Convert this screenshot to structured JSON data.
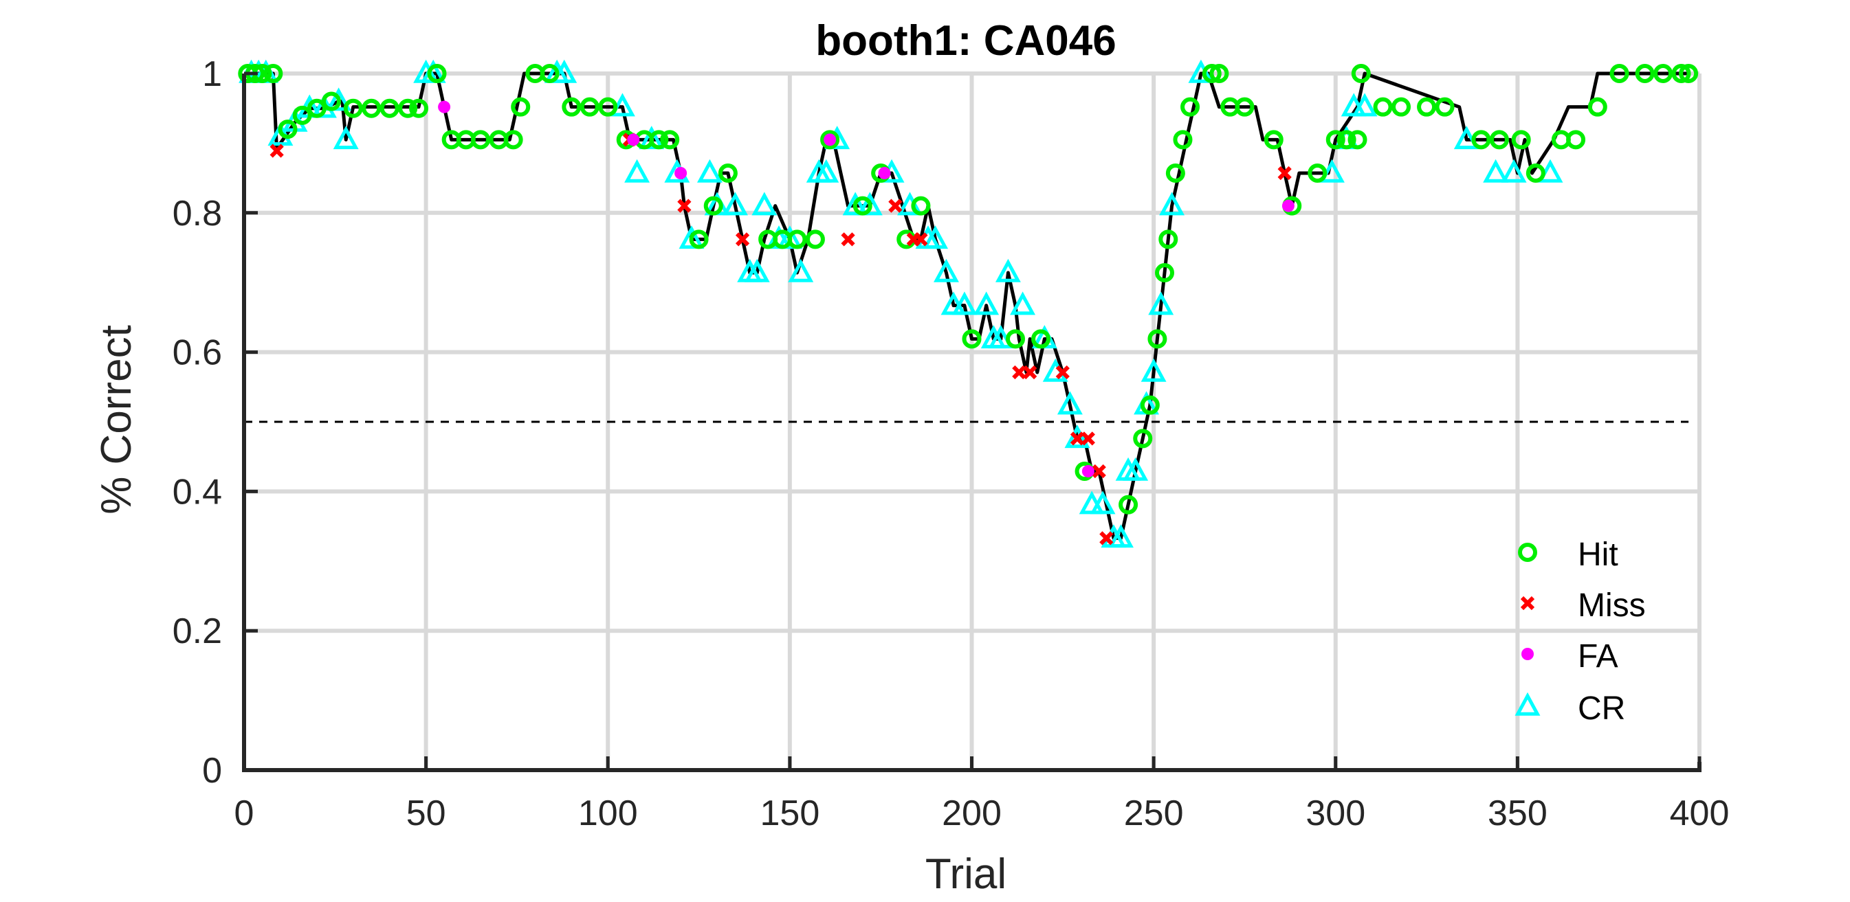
{
  "chart_data": {
    "type": "line",
    "title": "booth1: CA046",
    "xlabel": "Trial",
    "ylabel": "% Correct",
    "xlim": [
      0,
      400
    ],
    "ylim": [
      0,
      1
    ],
    "xticks": [
      0,
      50,
      100,
      150,
      200,
      250,
      300,
      350,
      400
    ],
    "xtick_labels": [
      "0",
      "50",
      "100",
      "150",
      "200",
      "250",
      "300",
      "350",
      "400"
    ],
    "yticks": [
      0,
      0.2,
      0.4,
      0.6,
      0.8,
      1
    ],
    "ytick_labels": [
      "0",
      "0.2",
      "0.4",
      "0.6",
      "0.8",
      "1"
    ],
    "grid": true,
    "legend_position": "bottom-right",
    "chance_level": 0.5,
    "line_color": "#000000",
    "series": [
      {
        "name": "Hit",
        "marker": "circle",
        "color": "#00ee00",
        "x": [
          1,
          3,
          5,
          8,
          12,
          16,
          20,
          24,
          30,
          35,
          40,
          45,
          48,
          53,
          57,
          61,
          65,
          70,
          74,
          76,
          80,
          84,
          90,
          95,
          100,
          105,
          110,
          114,
          117,
          125,
          129,
          133,
          144,
          148,
          152,
          157,
          161,
          170,
          175,
          182,
          186,
          200,
          212,
          219,
          231,
          243,
          247,
          249,
          251,
          253,
          254,
          256,
          258,
          260,
          266,
          268,
          271,
          275,
          283,
          288,
          295,
          300,
          303,
          306,
          307,
          313,
          318,
          325,
          330,
          340,
          345,
          351,
          355,
          362,
          366,
          372,
          378,
          385,
          390,
          395,
          397
        ],
        "y": [
          1,
          1,
          1,
          1,
          0.92,
          0.94,
          0.95,
          0.96,
          0.95,
          0.95,
          0.95,
          0.95,
          0.95,
          1,
          0.905,
          0.905,
          0.905,
          0.905,
          0.905,
          0.952,
          1,
          1,
          0.952,
          0.952,
          0.952,
          0.905,
          0.905,
          0.905,
          0.905,
          0.762,
          0.81,
          0.857,
          0.762,
          0.762,
          0.762,
          0.762,
          0.905,
          0.81,
          0.857,
          0.762,
          0.81,
          0.619,
          0.619,
          0.619,
          0.429,
          0.381,
          0.476,
          0.524,
          0.619,
          0.714,
          0.762,
          0.857,
          0.905,
          0.952,
          1,
          1,
          0.952,
          0.952,
          0.905,
          0.81,
          0.857,
          0.905,
          0.905,
          0.905,
          1,
          0.952,
          0.952,
          0.952,
          0.952,
          0.905,
          0.905,
          0.905,
          0.857,
          0.905,
          0.905,
          0.952,
          1,
          1,
          1,
          1,
          1
        ]
      },
      {
        "name": "Miss",
        "marker": "x",
        "color": "#ff0000",
        "x": [
          9,
          106,
          121,
          137,
          166,
          179,
          184,
          186,
          213,
          216,
          225,
          229,
          232,
          235,
          237,
          286
        ],
        "y": [
          0.889,
          0.905,
          0.81,
          0.762,
          0.762,
          0.81,
          0.762,
          0.762,
          0.571,
          0.571,
          0.571,
          0.476,
          0.476,
          0.429,
          0.333,
          0.857
        ],
        "extra_points": []
      },
      {
        "name": "FA",
        "marker": "dot",
        "color": "#ff00ff",
        "x": [
          55,
          107,
          120,
          161,
          176,
          232,
          287
        ],
        "y": [
          0.952,
          0.905,
          0.857,
          0.905,
          0.857,
          0.429,
          0.81
        ]
      },
      {
        "name": "CR",
        "marker": "triangle",
        "color": "#00ffff",
        "x": [
          2,
          4,
          6,
          10,
          14,
          18,
          22,
          26,
          28,
          50,
          52,
          86,
          88,
          104,
          108,
          112,
          119,
          123,
          128,
          130,
          135,
          139,
          141,
          143,
          147,
          150,
          153,
          158,
          160,
          163,
          168,
          172,
          178,
          183,
          188,
          190,
          193,
          195,
          198,
          204,
          206,
          208,
          210,
          214,
          220,
          223,
          227,
          229,
          233,
          236,
          239,
          241,
          243,
          245,
          248,
          250,
          252,
          255,
          263,
          299,
          303,
          305,
          308,
          336,
          344,
          349,
          359
        ],
        "y": [
          1,
          1,
          1,
          0.91,
          0.93,
          0.95,
          0.95,
          0.96,
          0.905,
          1,
          1,
          1,
          1,
          0.952,
          0.857,
          0.905,
          0.857,
          0.762,
          0.857,
          0.81,
          0.81,
          0.714,
          0.714,
          0.81,
          0.762,
          0.762,
          0.714,
          0.857,
          0.857,
          0.905,
          0.81,
          0.81,
          0.857,
          0.81,
          0.762,
          0.762,
          0.714,
          0.667,
          0.667,
          0.667,
          0.619,
          0.619,
          0.714,
          0.667,
          0.619,
          0.571,
          0.524,
          0.476,
          0.381,
          0.381,
          0.333,
          0.333,
          0.429,
          0.429,
          0.524,
          0.571,
          0.667,
          0.81,
          1,
          0.857,
          0.905,
          0.952,
          0.952,
          0.905,
          0.857,
          0.857,
          0.857
        ]
      }
    ],
    "performance_line": {
      "x": [
        1,
        8,
        9,
        10,
        14,
        18,
        22,
        26,
        27,
        28,
        30,
        48,
        50,
        53,
        55,
        57,
        73,
        75,
        77,
        88,
        90,
        104,
        106,
        118,
        120,
        121,
        123,
        127,
        129,
        131,
        133,
        135,
        137,
        139,
        141,
        143,
        146,
        150,
        152,
        155,
        158,
        160,
        162,
        164,
        166,
        168,
        172,
        175,
        178,
        181,
        184,
        186,
        188,
        190,
        193,
        195,
        198,
        200,
        202,
        204,
        206,
        208,
        210,
        212,
        213,
        215,
        216,
        218,
        220,
        222,
        225,
        227,
        229,
        231,
        233,
        235,
        237,
        239,
        241,
        243,
        245,
        247,
        249,
        251,
        253,
        255,
        257,
        259,
        261,
        263,
        265,
        268,
        278,
        280,
        284,
        286,
        288,
        290,
        298,
        300,
        306,
        308,
        334,
        336,
        348,
        350,
        352,
        354,
        360,
        364,
        370,
        372,
        380,
        397
      ],
      "y": [
        1,
        1,
        0.889,
        0.9,
        0.93,
        0.95,
        0.95,
        0.96,
        0.96,
        0.905,
        0.952,
        0.952,
        1,
        1,
        0.952,
        0.905,
        0.905,
        0.952,
        1,
        1,
        0.952,
        0.952,
        0.905,
        0.905,
        0.857,
        0.81,
        0.762,
        0.762,
        0.81,
        0.857,
        0.857,
        0.81,
        0.762,
        0.714,
        0.714,
        0.762,
        0.81,
        0.762,
        0.714,
        0.762,
        0.857,
        0.905,
        0.905,
        0.857,
        0.81,
        0.81,
        0.81,
        0.857,
        0.857,
        0.81,
        0.762,
        0.762,
        0.81,
        0.762,
        0.714,
        0.667,
        0.667,
        0.619,
        0.619,
        0.667,
        0.619,
        0.619,
        0.714,
        0.667,
        0.619,
        0.571,
        0.619,
        0.571,
        0.619,
        0.619,
        0.571,
        0.524,
        0.476,
        0.476,
        0.429,
        0.429,
        0.381,
        0.333,
        0.333,
        0.381,
        0.429,
        0.476,
        0.524,
        0.619,
        0.714,
        0.81,
        0.857,
        0.905,
        0.952,
        1,
        1,
        0.952,
        0.952,
        0.905,
        0.905,
        0.857,
        0.81,
        0.857,
        0.857,
        0.905,
        0.952,
        1,
        0.952,
        0.905,
        0.905,
        0.857,
        0.905,
        0.857,
        0.905,
        0.952,
        0.952,
        1,
        1,
        1
      ]
    }
  }
}
